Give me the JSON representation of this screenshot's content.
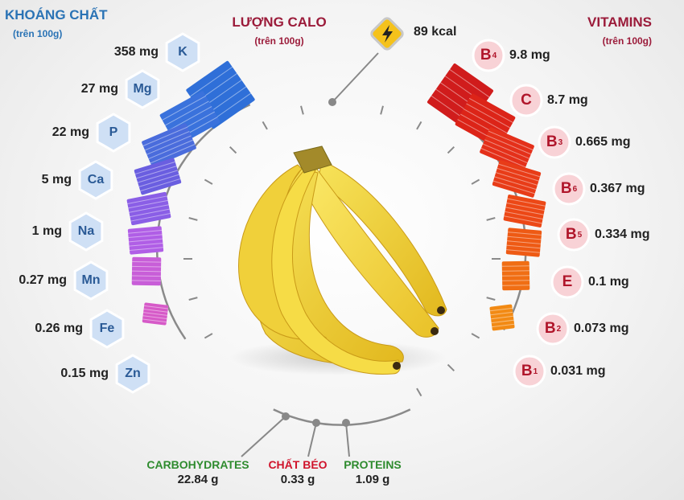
{
  "minerals": {
    "title": "KHOÁNG CHẤT",
    "subtitle": "(trên 100g)",
    "items": [
      {
        "symbol": "K",
        "value": "358 mg"
      },
      {
        "symbol": "Mg",
        "value": "27 mg"
      },
      {
        "symbol": "P",
        "value": "22 mg"
      },
      {
        "symbol": "Ca",
        "value": "5 mg"
      },
      {
        "symbol": "Na",
        "value": "1 mg"
      },
      {
        "symbol": "Mn",
        "value": "0.27 mg"
      },
      {
        "symbol": "Fe",
        "value": "0.26 mg"
      },
      {
        "symbol": "Zn",
        "value": "0.15 mg"
      }
    ]
  },
  "calories": {
    "title": "LƯỢNG CALO",
    "subtitle": "(trên 100g)",
    "value": "89 kcal",
    "icon": "lightning-bolt-icon"
  },
  "vitamins": {
    "title": "VITAMINS",
    "subtitle": "(trên 100g)",
    "items": [
      {
        "letter": "B",
        "index": "4",
        "value": "9.8 mg"
      },
      {
        "letter": "C",
        "index": "",
        "value": "8.7 mg"
      },
      {
        "letter": "B",
        "index": "3",
        "value": "0.665 mg"
      },
      {
        "letter": "B",
        "index": "6",
        "value": "0.367 mg"
      },
      {
        "letter": "B",
        "index": "5",
        "value": "0.334 mg"
      },
      {
        "letter": "E",
        "index": "",
        "value": "0.1 mg"
      },
      {
        "letter": "B",
        "index": "2",
        "value": "0.073 mg"
      },
      {
        "letter": "B",
        "index": "1",
        "value": "0.031 mg"
      }
    ]
  },
  "macros": [
    {
      "name": "CARBOHYDRATES",
      "value": "22.84 g",
      "color": "#2e8b2e"
    },
    {
      "name": "CHẤT BÉO",
      "value": "0.33 g",
      "color": "#d0142c"
    },
    {
      "name": "PROTEINS",
      "value": "1.09 g",
      "color": "#2e8b2e"
    }
  ],
  "colors": {
    "minerals_title": "#2a73b5",
    "calo_title": "#9b1b3a",
    "vitamins_title": "#9b1b3a"
  }
}
